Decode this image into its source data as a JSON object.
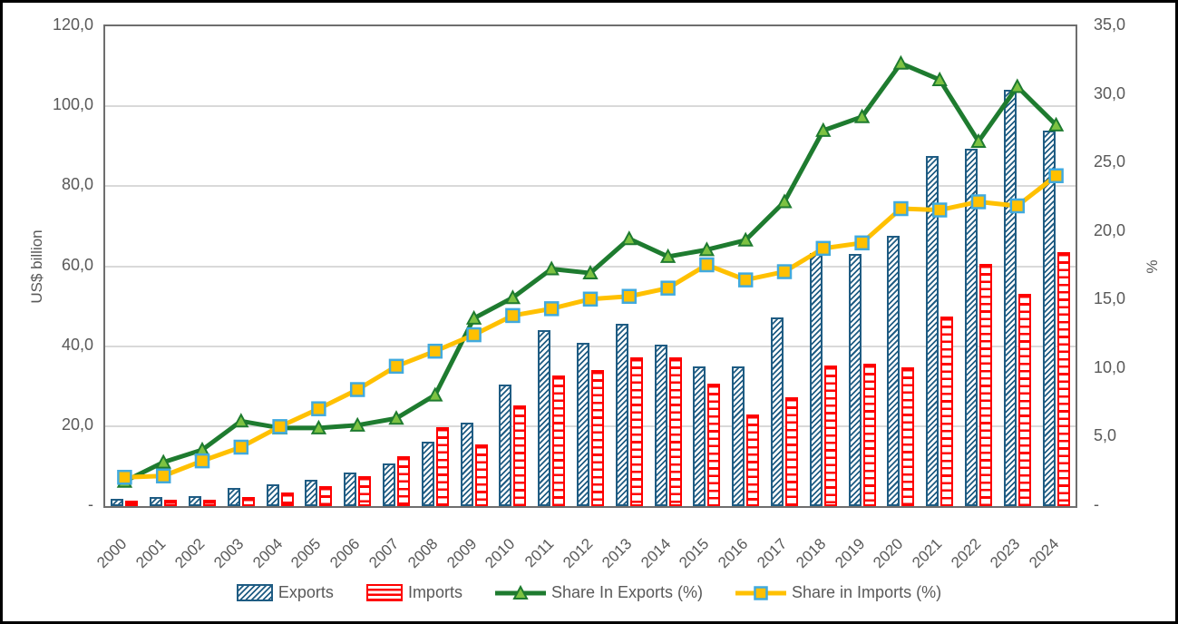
{
  "chart_data": {
    "type": "combo",
    "title": "",
    "categories": [
      "2000",
      "2001",
      "2002",
      "2003",
      "2004",
      "2005",
      "2006",
      "2007",
      "2008",
      "2009",
      "2010",
      "2011",
      "2012",
      "2013",
      "2014",
      "2015",
      "2016",
      "2017",
      "2018",
      "2019",
      "2020",
      "2021",
      "2022",
      "2023",
      "2024"
    ],
    "series": [
      {
        "name": "Exports",
        "type": "bar",
        "axis": "left",
        "values": [
          1.8,
          2.3,
          2.6,
          4.6,
          5.4,
          6.6,
          8.3,
          10.7,
          16.2,
          20.9,
          30.5,
          43.9,
          40.9,
          45.7,
          40.3,
          35.0,
          35.0,
          47.1,
          63.3,
          63.0,
          67.6,
          87.5,
          89.3,
          104.1,
          94.0
        ]
      },
      {
        "name": "Imports",
        "type": "bar",
        "axis": "left",
        "values": [
          1.4,
          1.6,
          1.7,
          2.2,
          3.4,
          5.1,
          7.4,
          12.5,
          19.7,
          15.5,
          25.2,
          32.7,
          34.0,
          37.1,
          37.3,
          30.6,
          23.0,
          27.3,
          35.1,
          35.6,
          34.6,
          47.3,
          60.5,
          53.0,
          63.5
        ]
      },
      {
        "name": "Share In Exports (%)",
        "type": "line",
        "axis": "right",
        "values": [
          1.8,
          3.2,
          4.1,
          6.2,
          5.7,
          5.7,
          5.9,
          6.4,
          8.1,
          13.7,
          15.2,
          17.3,
          17.0,
          19.5,
          18.2,
          18.7,
          19.4,
          22.2,
          27.4,
          28.4,
          32.3,
          31.1,
          26.6,
          30.6,
          27.8
        ]
      },
      {
        "name": "Share in Imports (%)",
        "type": "line",
        "axis": "right",
        "values": [
          2.1,
          2.2,
          3.3,
          4.3,
          5.8,
          7.1,
          8.5,
          10.2,
          11.3,
          12.5,
          13.9,
          14.4,
          15.1,
          15.3,
          15.9,
          17.6,
          16.5,
          17.1,
          18.8,
          19.2,
          21.7,
          21.6,
          22.2,
          21.9,
          24.1
        ]
      }
    ],
    "left_axis": {
      "label": "US$ billion",
      "max": 120,
      "min": 0,
      "ticks": [
        "120,0",
        "100,0",
        "80,0",
        "60,0",
        "40,0",
        "20,0",
        "-"
      ],
      "tick_values": [
        120,
        100,
        80,
        60,
        40,
        20,
        0
      ]
    },
    "right_axis": {
      "label": "%",
      "max": 35,
      "min": 0,
      "ticks": [
        "35,0",
        "30,0",
        "25,0",
        "20,0",
        "15,0",
        "10,0",
        "5,0",
        "-"
      ],
      "tick_values": [
        35,
        30,
        25,
        20,
        15,
        10,
        5,
        0
      ]
    },
    "grid": true,
    "legend_position": "bottom"
  },
  "colors": {
    "exports_bar": "#1f5c83",
    "imports_bar": "#fe0000",
    "share_in_exports_line": "#1e7b2f",
    "share_in_exports_marker": "#7dc242",
    "share_in_imports_line": "#ffc000",
    "line_marker_border": "#41aade",
    "gridline": "#d9d9d9",
    "axis_text": "#595959",
    "plot_border": "#6e6e6e"
  }
}
